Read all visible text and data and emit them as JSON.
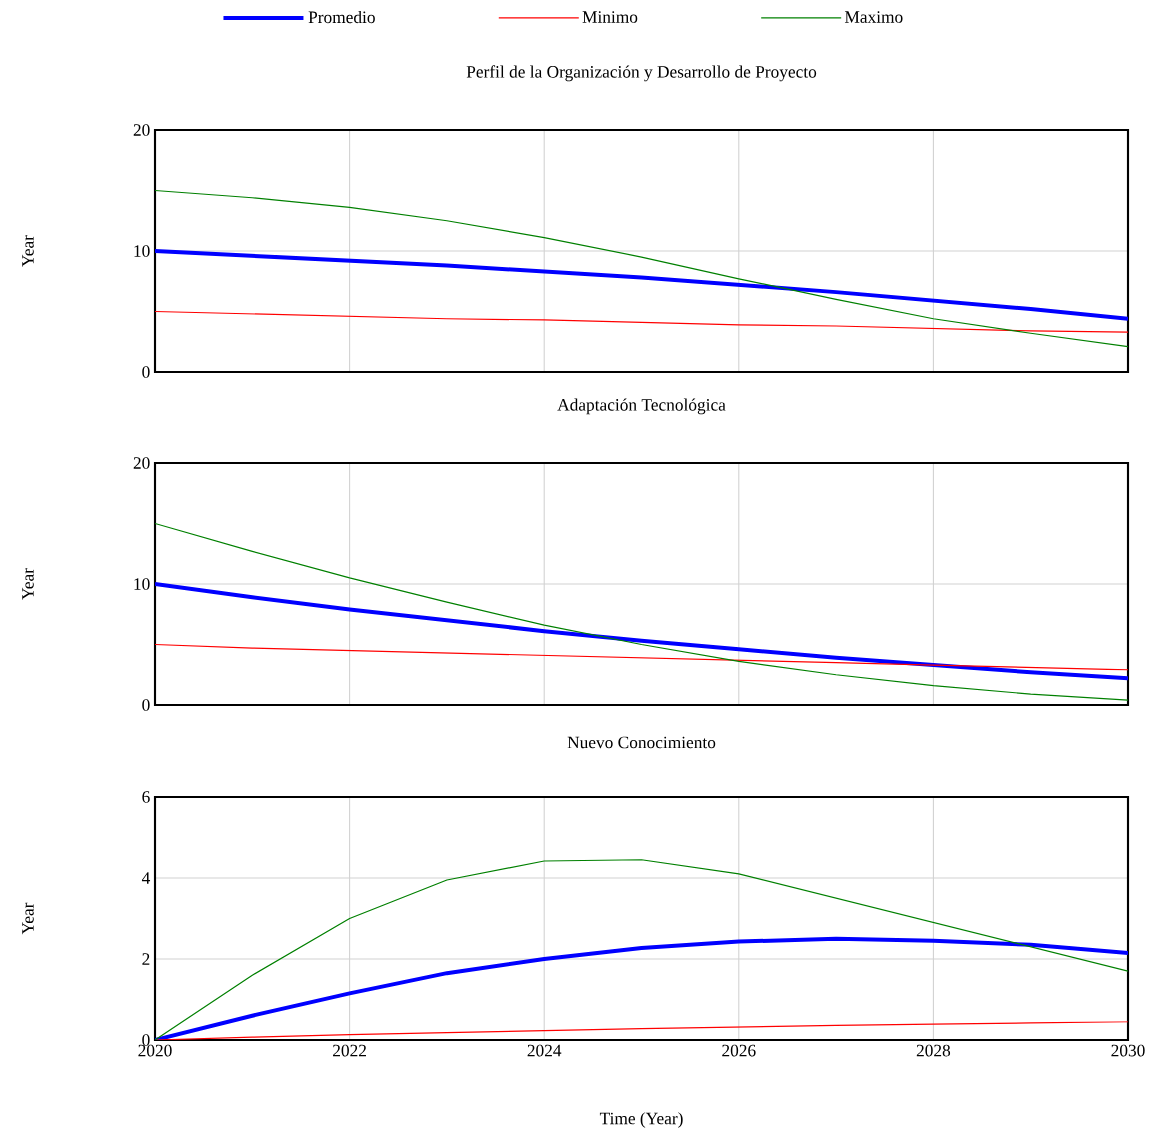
{
  "chart_data": [
    {
      "type": "line",
      "title": "Perfil de la Organización y Desarrollo de Proyecto",
      "ylabel": "Year",
      "x": [
        2020,
        2021,
        2022,
        2023,
        2024,
        2025,
        2026,
        2027,
        2028,
        2029,
        2030
      ],
      "xlim": [
        2020,
        2030
      ],
      "xticks": [
        2020,
        2022,
        2024,
        2026,
        2028,
        2030
      ],
      "ylim": [
        0,
        20
      ],
      "yticks": [
        0,
        10,
        20
      ],
      "grid": true,
      "legend": "top",
      "tick_labels": "y",
      "series": [
        {
          "name": "Promedio",
          "color": "#0000ff",
          "values": [
            10,
            9.6,
            9.2,
            8.8,
            8.3,
            7.8,
            7.2,
            6.6,
            5.9,
            5.2,
            4.4
          ]
        },
        {
          "name": "Minimo",
          "color": "#ff0000",
          "values": [
            5,
            4.8,
            4.6,
            4.4,
            4.3,
            4.1,
            3.9,
            3.8,
            3.6,
            3.4,
            3.3
          ]
        },
        {
          "name": "Maximo",
          "color": "#008000",
          "values": [
            15,
            14.4,
            13.6,
            12.5,
            11.1,
            9.5,
            7.7,
            6.0,
            4.4,
            3.2,
            2.1
          ]
        }
      ]
    },
    {
      "type": "line",
      "title": "Adaptación Tecnológica",
      "ylabel": "Year",
      "x": [
        2020,
        2021,
        2022,
        2023,
        2024,
        2025,
        2026,
        2027,
        2028,
        2029,
        2030
      ],
      "xlim": [
        2020,
        2030
      ],
      "xticks": [
        2020,
        2022,
        2024,
        2026,
        2028,
        2030
      ],
      "ylim": [
        0,
        20
      ],
      "yticks": [
        0,
        10,
        20
      ],
      "grid": true,
      "tick_labels": "y",
      "series": [
        {
          "color": "#0000ff",
          "values": [
            10,
            8.9,
            7.9,
            7.0,
            6.1,
            5.3,
            4.6,
            3.9,
            3.3,
            2.7,
            2.2
          ]
        },
        {
          "color": "#ff0000",
          "values": [
            5,
            4.7,
            4.5,
            4.3,
            4.1,
            3.9,
            3.7,
            3.5,
            3.3,
            3.1,
            2.9
          ]
        },
        {
          "color": "#008000",
          "values": [
            15,
            12.7,
            10.5,
            8.5,
            6.6,
            5.0,
            3.6,
            2.5,
            1.6,
            0.9,
            0.4
          ]
        }
      ]
    },
    {
      "type": "line",
      "title": "Nuevo Conocimiento",
      "ylabel": "Year",
      "xlabel": "Time (Year)",
      "x": [
        2020,
        2021,
        2022,
        2023,
        2024,
        2025,
        2026,
        2027,
        2028,
        2029,
        2030
      ],
      "xlim": [
        2020,
        2030
      ],
      "xticks": [
        2020,
        2022,
        2024,
        2026,
        2028,
        2030
      ],
      "ylim": [
        0,
        6
      ],
      "yticks": [
        0,
        2,
        4,
        6
      ],
      "grid": true,
      "series": [
        {
          "color": "#0000ff",
          "values": [
            0,
            0.6,
            1.15,
            1.65,
            2.0,
            2.27,
            2.43,
            2.5,
            2.45,
            2.35,
            2.15
          ]
        },
        {
          "color": "#ff0000",
          "values": [
            0,
            0.07,
            0.13,
            0.18,
            0.23,
            0.28,
            0.32,
            0.36,
            0.39,
            0.42,
            0.45
          ]
        },
        {
          "color": "#008000",
          "values": [
            0,
            1.6,
            3.0,
            3.95,
            4.42,
            4.45,
            4.1,
            3.5,
            2.9,
            2.3,
            1.7
          ]
        }
      ]
    }
  ]
}
